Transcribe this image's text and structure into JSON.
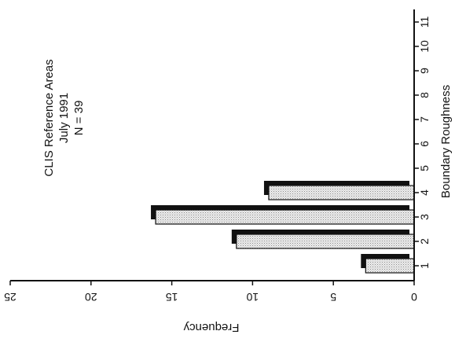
{
  "chart_data": {
    "type": "bar",
    "orientation": "rotated (frequency axis along the bottom, reading right-to-left; categories along the right edge)",
    "categories": [
      "1",
      "2",
      "3",
      "4",
      "5",
      "6",
      "7",
      "8",
      "9",
      "10",
      "11"
    ],
    "values": [
      3,
      11,
      16,
      9,
      0,
      0,
      0,
      0,
      0,
      0,
      0
    ],
    "xlabel": "Boundary Roughness",
    "ylabel": "Frequency",
    "ylim": [
      0,
      25
    ],
    "y_ticks": [
      "0",
      "5",
      "10",
      "15",
      "20",
      "25"
    ],
    "annotation": [
      "CLIS Reference Areas",
      "July 1991",
      "N = 39"
    ],
    "grid": false,
    "bar_style": "dotted light gray fill with heavy black drop shadow",
    "colors": {
      "bar_fill": "#d9d9d9",
      "bar_shadow": "#111111",
      "axis": "#111111"
    }
  }
}
